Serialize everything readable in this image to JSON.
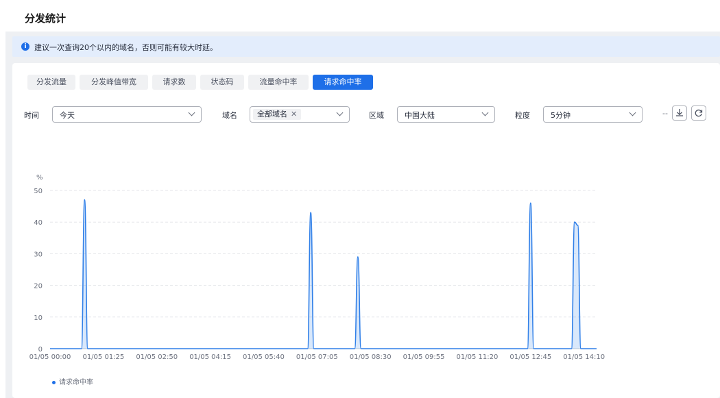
{
  "page": {
    "title": "分发统计"
  },
  "notice": {
    "text": "建议一次查询20个以内的域名，否则可能有较大时延。"
  },
  "tabs": [
    {
      "label": "分发流量",
      "active": false
    },
    {
      "label": "分发峰值带宽",
      "active": false
    },
    {
      "label": "请求数",
      "active": false
    },
    {
      "label": "状态码",
      "active": false
    },
    {
      "label": "流量命中率",
      "active": false
    },
    {
      "label": "请求命中率",
      "active": true
    }
  ],
  "filters": {
    "time": {
      "label": "时间",
      "value": "今天"
    },
    "domain": {
      "label": "域名",
      "value": "全部域名",
      "clear": "✕"
    },
    "region": {
      "label": "区域",
      "value": "中国大陆"
    },
    "granularity": {
      "label": "粒度",
      "value": "5分钟"
    },
    "dash": "--"
  },
  "icons": {
    "download": "download-icon",
    "refresh": "refresh-icon",
    "info": "info-icon"
  },
  "colors": {
    "accent": "#1e6fe8",
    "series": "#2f7fe8"
  },
  "chart_data": {
    "type": "line",
    "ylabel": "%",
    "ylim": [
      0,
      50
    ],
    "yticks": [
      0,
      10,
      20,
      30,
      40,
      50
    ],
    "xlim": [
      "01/05 00:00",
      "01/05 14:30"
    ],
    "xticks": [
      "01/05 00:00",
      "01/05 01:25",
      "01/05 02:50",
      "01/05 04:15",
      "01/05 05:40",
      "01/05 07:05",
      "01/05 08:30",
      "01/05 09:55",
      "01/05 11:20",
      "01/05 12:45",
      "01/05 14:10"
    ],
    "grid": true,
    "legend_position": "bottom-left",
    "series": [
      {
        "name": "请求命中率",
        "x": [
          "01/05 00:00",
          "01/05 00:50",
          "01/05 00:55",
          "01/05 01:00",
          "01/05 06:50",
          "01/05 06:55",
          "01/05 07:00",
          "01/05 08:05",
          "01/05 08:10",
          "01/05 08:15",
          "01/05 12:40",
          "01/05 12:45",
          "01/05 12:50",
          "01/05 13:50",
          "01/05 13:55",
          "01/05 14:00",
          "01/05 14:05",
          "01/05 14:30"
        ],
        "values": [
          0,
          0,
          47,
          0,
          0,
          43,
          0,
          0,
          29,
          0,
          0,
          46,
          0,
          0,
          40,
          39,
          0,
          0
        ]
      }
    ]
  }
}
